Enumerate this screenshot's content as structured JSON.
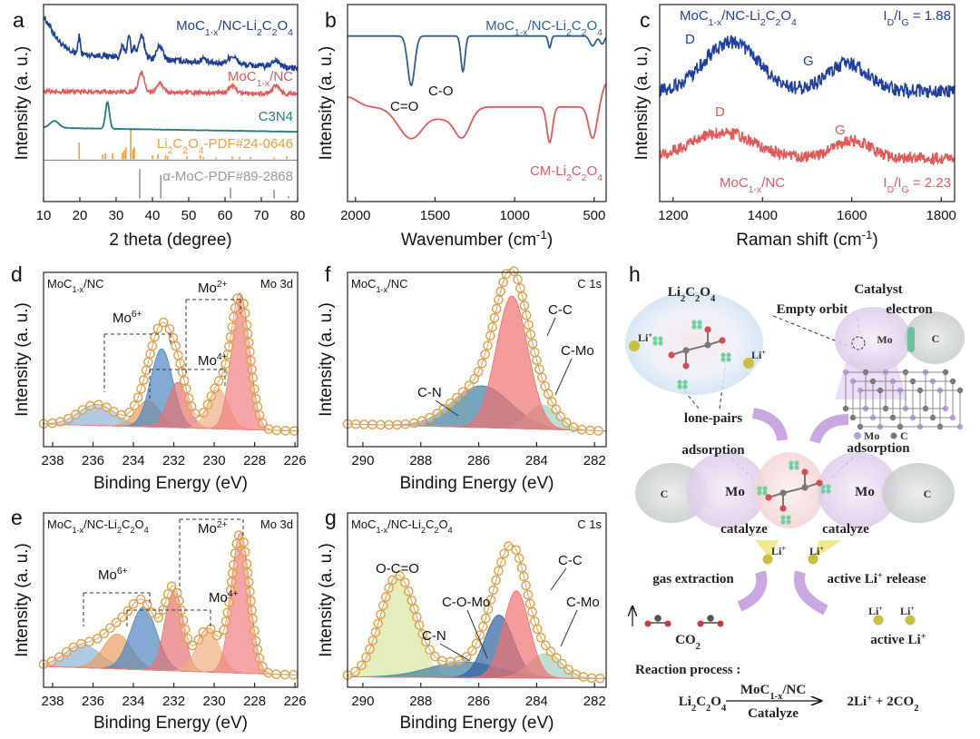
{
  "figure": {
    "panel_letters": [
      "a",
      "b",
      "c",
      "d",
      "e",
      "f",
      "g",
      "h"
    ]
  },
  "chart_data": [
    {
      "id": "a",
      "type": "line",
      "xlabel": "2 theta (degree)",
      "ylabel": "Intensity (a. u.)",
      "xlim": [
        10,
        80
      ],
      "ylim": [
        0,
        10
      ],
      "xticks": [
        10,
        20,
        30,
        40,
        50,
        60,
        70,
        80
      ],
      "series": [
        {
          "name": "MoC_{1-x}/NC-Li_{2}C_{2}O_{4}",
          "color": "#1f3f8f",
          "base": 7.6,
          "slope": -0.012,
          "noise": 0.15,
          "peaks": [
            [
              8,
              2,
              4
            ],
            [
              19.8,
              0.9,
              0.3
            ],
            [
              31.8,
              0.6,
              0.4
            ],
            [
              33.5,
              1.2,
              0.4
            ],
            [
              35,
              0.5,
              0.4
            ],
            [
              37,
              1.1,
              0.8
            ],
            [
              42,
              0.7,
              0.8
            ],
            [
              54,
              0.2,
              0.6
            ],
            [
              62,
              0.4,
              1.2
            ],
            [
              74,
              0.35,
              1
            ]
          ]
        },
        {
          "name": "MoC_{1-x}/NC",
          "color": "#e05a5a",
          "base": 5.6,
          "slope": -0.002,
          "noise": 0.1,
          "peaks": [
            [
              37,
              1.0,
              0.8
            ],
            [
              42,
              0.5,
              0.9
            ],
            [
              62,
              0.35,
              1
            ],
            [
              74,
              0.4,
              1
            ]
          ]
        },
        {
          "name": "C3N4",
          "color": "#2a7a7a",
          "base": 3.75,
          "slope": -0.003,
          "noise": 0.01,
          "peaks": [
            [
              13,
              0.35,
              1.2
            ],
            [
              27.6,
              1.35,
              0.55
            ]
          ]
        }
      ],
      "sticks": [
        {
          "name": "Li_{2}C_{2}O_{4}-PDF#24-0646",
          "color": "#e8a040",
          "base": 2.15,
          "values": [
            [
              19.8,
              0.85
            ],
            [
              26.3,
              0.25
            ],
            [
              27,
              0.3
            ],
            [
              29,
              0.3
            ],
            [
              31.7,
              0.35
            ],
            [
              32.2,
              0.45
            ],
            [
              32.7,
              0.6
            ],
            [
              34,
              1.5
            ],
            [
              34.7,
              0.5
            ],
            [
              35,
              0.6
            ],
            [
              40,
              0.2
            ],
            [
              41.5,
              0.25
            ],
            [
              43.6,
              0.2
            ],
            [
              44.2,
              0.15
            ],
            [
              49.5,
              0.15
            ],
            [
              53.2,
              0.2
            ],
            [
              54,
              0.1
            ],
            [
              57.5,
              0.1
            ],
            [
              62,
              0.15
            ],
            [
              64,
              0.12
            ],
            [
              67,
              0.12
            ],
            [
              73.5,
              0.1
            ],
            [
              77,
              0.15
            ]
          ]
        },
        {
          "name": "α-MoC-PDF#89-2868",
          "color": "#9a9a9a",
          "base": 0.15,
          "values": [
            [
              36.5,
              1.5
            ],
            [
              42.3,
              1.2
            ],
            [
              61.5,
              0.55
            ],
            [
              73.5,
              0.45
            ],
            [
              77.5,
              0.12
            ]
          ]
        }
      ]
    },
    {
      "id": "b",
      "type": "line",
      "xlabel": "Wavenumber (cm^{-1})",
      "ylabel": "Intensity (a. u.)",
      "xlim": [
        2050,
        425
      ],
      "ylim": [
        0,
        10
      ],
      "xticks": [
        2000,
        1500,
        1000,
        500
      ],
      "series": [
        {
          "name": "MoC_{1-x}/NC-Li_{2}C_{2}O_{4}",
          "color": "#2f5f8f",
          "base": 8.4,
          "slope": 0,
          "noise": 0.0,
          "peaks": [
            [
              1650,
              -2.5,
              22
            ],
            [
              1325,
              -1.8,
              13
            ],
            [
              780,
              -0.6,
              9
            ],
            [
              510,
              -0.5,
              18
            ],
            [
              450,
              -0.4,
              14
            ]
          ]
        },
        {
          "name": "CM-Li_{2}C_{2}O_{4}",
          "color": "#e05a5a",
          "base": 4.8,
          "slope": 0,
          "noise": 0.0,
          "peaks": [
            [
              1650,
              -1.6,
              80
            ],
            [
              1330,
              -1.5,
              50
            ],
            [
              1450,
              -0.5,
              60
            ],
            [
              780,
              -1.8,
              18
            ],
            [
              510,
              -1.6,
              25
            ],
            [
              2050,
              0.5,
              60
            ],
            [
              420,
              1.2,
              30
            ]
          ]
        }
      ],
      "annotations": [
        "C=O",
        "C-O"
      ]
    },
    {
      "id": "c",
      "type": "line",
      "xlabel": "Raman shift (cm^{-1})",
      "ylabel": "Intensity (a. u.)",
      "xlim": [
        1170,
        1830
      ],
      "ylim": [
        0,
        10
      ],
      "xticks": [
        1200,
        1400,
        1600,
        1800
      ],
      "series": [
        {
          "name": "MoC_{1-x}/NC-Li_{2}C_{2}O_{4}",
          "color": "#1f3f9f",
          "base": 5.6,
          "slope": 0,
          "noise": 0.35,
          "peaks": [
            [
              1330,
              2.5,
              60
            ],
            [
              1590,
              1.4,
              45
            ]
          ],
          "ratio": "I_{D}/I_{G} = 1.88"
        },
        {
          "name": "MoC_{1-x}/NC",
          "color": "#e05a5a",
          "base": 2.2,
          "slope": 0,
          "noise": 0.3,
          "peaks": [
            [
              1310,
              1.3,
              70
            ],
            [
              1600,
              0.9,
              40
            ]
          ],
          "ratio": "I_{D}/I_{G} = 2.23"
        }
      ],
      "annotations": [
        "D",
        "G",
        "D",
        "G"
      ]
    },
    {
      "id": "d",
      "type": "area",
      "title": "MoC_{1-x}/NC",
      "region": "Mo 3d",
      "xlabel": "Binding Energy (eV)",
      "ylabel": "Intensity (a. u.)",
      "xlim": [
        238.45,
        225.87
      ],
      "ylim": [
        0,
        10
      ],
      "xticks": [
        238,
        236,
        234,
        232,
        230,
        228,
        226
      ],
      "baseline": [
        1.3,
        0.9
      ],
      "components": [
        {
          "name": "Mo6+ 3d3/2",
          "center": 235.8,
          "height": 1.2,
          "width": 0.9,
          "color": "#8fb3d9"
        },
        {
          "name": "Mo4+ 3d3/2",
          "center": 233.3,
          "height": 1.5,
          "width": 0.6,
          "color": "#e8a060"
        },
        {
          "name": "Mo6+ 3d5/2",
          "center": 232.6,
          "height": 4.5,
          "width": 0.55,
          "color": "#4f86c0"
        },
        {
          "name": "Mo2+ 3d3/2",
          "center": 231.8,
          "height": 2.6,
          "width": 0.5,
          "color": "#e57373"
        },
        {
          "name": "Mo4+ 3d5/2",
          "center": 229.8,
          "height": 2.3,
          "width": 0.5,
          "color": "#f0b080"
        },
        {
          "name": "Mo2+ 3d5/2",
          "center": 228.7,
          "height": 7.6,
          "width": 0.45,
          "color": "#ef8080"
        }
      ],
      "labels": [
        "Mo^{2+}",
        "Mo^{6+}",
        "Mo^{4+}"
      ]
    },
    {
      "id": "e",
      "type": "area",
      "title": "MoC_{1-x}/NC-Li_{2}C_{2}O_{4}",
      "region": "Mo 3d",
      "xlabel": "Binding Energy (eV)",
      "ylabel": "Intensity (a. u.)",
      "xlim": [
        238.45,
        225.87
      ],
      "ylim": [
        0,
        10
      ],
      "xticks": [
        238,
        236,
        234,
        232,
        230,
        228,
        226
      ],
      "baseline": [
        1.2,
        0.7
      ],
      "components": [
        {
          "name": "Mo6+ 3d3/2",
          "center": 236.5,
          "height": 1.3,
          "width": 0.9,
          "color": "#8fb3d9"
        },
        {
          "name": "Mo4+ 3d3/2",
          "center": 234.8,
          "height": 2.0,
          "width": 0.7,
          "color": "#e8a060"
        },
        {
          "name": "Mo6+ 3d5/2",
          "center": 233.5,
          "height": 3.6,
          "width": 0.65,
          "color": "#4f86c0"
        },
        {
          "name": "Mo2+ 3d3/2",
          "center": 232.0,
          "height": 4.6,
          "width": 0.45,
          "color": "#e57373"
        },
        {
          "name": "Mo4+ 3d5/2",
          "center": 230.3,
          "height": 2.5,
          "width": 0.55,
          "color": "#f0b080"
        },
        {
          "name": "Mo2+ 3d5/2",
          "center": 228.7,
          "height": 8.0,
          "width": 0.45,
          "color": "#ef8080"
        }
      ],
      "labels": [
        "Mo^{2+}",
        "Mo^{6+}",
        "Mo^{4+}"
      ]
    },
    {
      "id": "f",
      "type": "area",
      "title": "MoC_{1-x}/NC",
      "region": "C 1s",
      "xlabel": "Binding Energy (eV)",
      "ylabel": "Intensity (a. u.)",
      "xlim": [
        290.53,
        281.6
      ],
      "ylim": [
        0,
        10
      ],
      "xticks": [
        290,
        288,
        286,
        284,
        282
      ],
      "baseline": [
        1.3,
        0.9
      ],
      "components": [
        {
          "name": "C-N",
          "center": 285.9,
          "height": 2.4,
          "width": 1.0,
          "color": "#3f7f9f"
        },
        {
          "name": "C-Mo",
          "center": 283.8,
          "height": 1.4,
          "width": 0.5,
          "color": "#9fd0c0"
        },
        {
          "name": "C-C",
          "center": 284.85,
          "height": 7.6,
          "width": 0.55,
          "color": "#ef7070"
        }
      ],
      "labels": [
        "C-C",
        "C-N",
        "C-Mo"
      ]
    },
    {
      "id": "g",
      "type": "area",
      "title": "MoC_{1-x}/NC-Li_{2}C_{2}O_{4}",
      "region": "C 1s",
      "xlabel": "Binding Energy (eV)",
      "ylabel": "Intensity (a. u.)",
      "xlim": [
        290.53,
        281.6
      ],
      "ylim": [
        0,
        10
      ],
      "xticks": [
        290,
        288,
        286,
        284,
        282
      ],
      "baseline": [
        0.6,
        0.5
      ],
      "components": [
        {
          "name": "O-C=O",
          "center": 288.8,
          "height": 5.7,
          "width": 0.6,
          "color": "#d9e6a0"
        },
        {
          "name": "C-N",
          "center": 286.5,
          "height": 0.9,
          "width": 1.2,
          "color": "#3f7f9f"
        },
        {
          "name": "C-O-Mo",
          "center": 285.3,
          "height": 3.6,
          "width": 0.5,
          "color": "#2f5f9f"
        },
        {
          "name": "C-Mo",
          "center": 283.7,
          "height": 1.4,
          "width": 0.55,
          "color": "#9fd0c0"
        },
        {
          "name": "C-C",
          "center": 284.7,
          "height": 5.0,
          "width": 0.45,
          "color": "#ef7070"
        }
      ],
      "labels": [
        "O-C=O",
        "C-O-Mo",
        "C-N",
        "C-C",
        "C-Mo"
      ]
    }
  ],
  "diagram": {
    "reactant": "Li_{2}C_{2}O_{4}",
    "catalyst": "Catalyst",
    "empty_orbit": "Empty orbit",
    "electron": "electron",
    "li_ion": "Li^{+}",
    "mo": "Mo",
    "c": "C",
    "lone_pairs": "lone-pairs",
    "legend_mo": "Mo",
    "legend_c": "C",
    "adsorption": "adsorption",
    "catalyze": "catalyze",
    "gas_extraction": "gas extraction",
    "active_release": "active Li^{+} release",
    "co2": "CO_{2}",
    "active_li": "active Li^{+}",
    "reaction_title": "Reaction process :",
    "eq_left": "Li_{2}C_{2}O_{4}",
    "eq_top": "MoC_{1-x}/NC",
    "eq_bottom": "Catalyze",
    "eq_right": "2Li^{+} + 2CO_{2}"
  }
}
